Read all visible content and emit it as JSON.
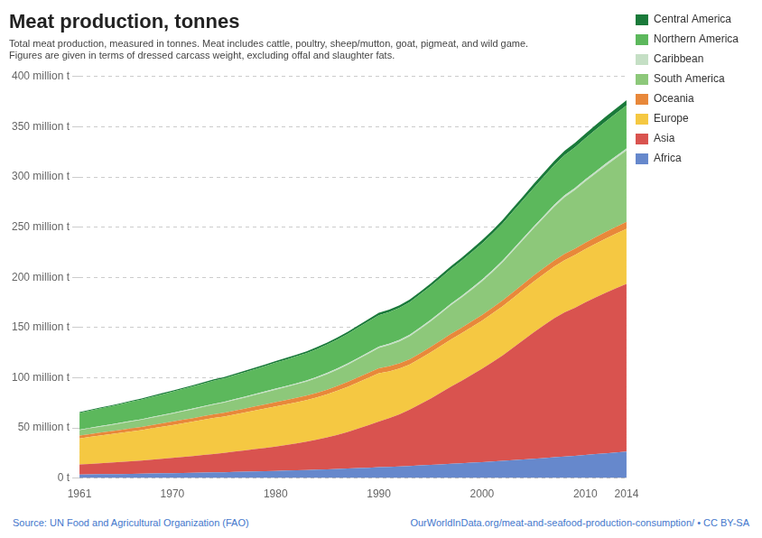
{
  "chart_data": {
    "type": "area",
    "title": "Meat production, tonnes",
    "subtitle": [
      "Total meat production, measured in tonnes. Meat includes cattle, poultry, sheep/mutton, goat, pigmeat, and wild game.",
      "Figures are given in terms of dressed carcass weight, excluding offal and slaughter fats."
    ],
    "annotations": [
      "Source: UN Food and Agricultural Organization (FAO)",
      "OurWorldInData.org/meat-and-seafood-production-consumption/ • CC BY-SA"
    ],
    "x": [
      1961,
      1962,
      1963,
      1964,
      1965,
      1966,
      1967,
      1968,
      1969,
      1970,
      1971,
      1972,
      1973,
      1974,
      1975,
      1976,
      1977,
      1978,
      1979,
      1980,
      1981,
      1982,
      1983,
      1984,
      1985,
      1986,
      1987,
      1988,
      1989,
      1990,
      1991,
      1992,
      1993,
      1994,
      1995,
      1996,
      1997,
      1998,
      1999,
      2000,
      2001,
      2002,
      2003,
      2004,
      2005,
      2006,
      2007,
      2008,
      2009,
      2010,
      2011,
      2012,
      2013,
      2014
    ],
    "series": [
      {
        "name": "Africa",
        "color": "#6688cc",
        "values": [
          3.5,
          3.6,
          3.8,
          3.9,
          4.0,
          4.2,
          4.3,
          4.5,
          4.7,
          4.8,
          5.0,
          5.2,
          5.4,
          5.6,
          5.8,
          6.1,
          6.3,
          6.6,
          6.9,
          7.1,
          7.4,
          7.7,
          8.0,
          8.3,
          8.7,
          9.1,
          9.5,
          9.9,
          10.3,
          10.8,
          11.2,
          11.6,
          12.1,
          12.6,
          13.1,
          13.6,
          14.2,
          14.7,
          15.3,
          15.9,
          16.5,
          17.2,
          17.8,
          18.5,
          19.2,
          19.9,
          20.7,
          21.5,
          22.2,
          23.0,
          23.9,
          24.7,
          25.6,
          26.4
        ]
      },
      {
        "name": "Asia",
        "color": "#d9534f",
        "values": [
          10.0,
          10.5,
          11.0,
          11.5,
          12.0,
          12.5,
          13.0,
          13.8,
          14.5,
          15.2,
          16.0,
          16.8,
          17.6,
          18.4,
          19.2,
          20.2,
          21.2,
          22.2,
          23.2,
          24.3,
          25.5,
          26.8,
          28.2,
          30.0,
          31.8,
          34.0,
          36.5,
          39.5,
          42.5,
          45.5,
          48.5,
          52.0,
          56.0,
          61.0,
          66.0,
          71.5,
          77.0,
          82.0,
          87.5,
          93.0,
          99.0,
          105.0,
          112.0,
          119.0,
          126.0,
          132.5,
          138.5,
          143.5,
          147.5,
          152.0,
          156.0,
          160.0,
          163.5,
          167.0
        ]
      },
      {
        "name": "Europe",
        "color": "#f5c842",
        "values": [
          26.0,
          26.8,
          27.5,
          28.2,
          29.0,
          29.8,
          30.5,
          31.3,
          32.0,
          32.8,
          33.5,
          34.2,
          35.0,
          35.8,
          36.3,
          37.0,
          37.8,
          38.5,
          39.2,
          40.0,
          40.5,
          41.0,
          41.5,
          42.0,
          43.0,
          44.0,
          45.0,
          46.0,
          47.0,
          48.0,
          46.5,
          45.5,
          45.0,
          45.5,
          46.0,
          46.5,
          47.0,
          47.5,
          47.8,
          48.0,
          48.5,
          49.0,
          49.5,
          50.0,
          50.5,
          51.0,
          51.5,
          52.0,
          52.5,
          53.0,
          53.5,
          54.0,
          54.5,
          55.0
        ]
      },
      {
        "name": "Oceania",
        "color": "#e8883a",
        "values": [
          2.8,
          2.9,
          2.9,
          3.0,
          3.0,
          3.1,
          3.1,
          3.2,
          3.3,
          3.4,
          3.5,
          3.5,
          3.6,
          3.7,
          3.8,
          3.8,
          3.9,
          4.0,
          4.1,
          4.2,
          4.2,
          4.3,
          4.4,
          4.5,
          4.6,
          4.7,
          4.8,
          4.9,
          5.0,
          5.0,
          5.1,
          5.1,
          5.2,
          5.2,
          5.3,
          5.4,
          5.5,
          5.5,
          5.6,
          5.6,
          5.7,
          5.8,
          5.9,
          5.9,
          6.0,
          6.1,
          6.2,
          6.3,
          6.3,
          6.4,
          6.5,
          6.6,
          6.7,
          6.8
        ]
      },
      {
        "name": "South America",
        "color": "#8dc87a",
        "values": [
          5.5,
          5.7,
          6.0,
          6.2,
          6.5,
          6.8,
          7.1,
          7.4,
          7.7,
          8.0,
          8.4,
          8.8,
          9.2,
          9.6,
          10.0,
          10.5,
          11.0,
          11.5,
          12.0,
          12.5,
          13.0,
          13.5,
          14.0,
          14.8,
          15.5,
          16.3,
          17.2,
          18.2,
          19.2,
          20.3,
          21.2,
          22.0,
          23.0,
          24.2,
          25.5,
          27.0,
          28.5,
          30.0,
          31.5,
          33.5,
          35.5,
          38.0,
          41.0,
          44.0,
          47.0,
          50.0,
          53.5,
          56.5,
          58.5,
          61.0,
          63.5,
          66.0,
          68.5,
          71.0
        ]
      },
      {
        "name": "Caribbean",
        "color": "#c5dfc5",
        "values": [
          0.5,
          0.52,
          0.54,
          0.56,
          0.58,
          0.6,
          0.62,
          0.65,
          0.67,
          0.7,
          0.73,
          0.76,
          0.79,
          0.82,
          0.85,
          0.88,
          0.91,
          0.94,
          0.97,
          1.0,
          1.03,
          1.06,
          1.1,
          1.14,
          1.18,
          1.22,
          1.26,
          1.3,
          1.34,
          1.38,
          1.41,
          1.44,
          1.47,
          1.5,
          1.54,
          1.57,
          1.6,
          1.64,
          1.67,
          1.7,
          1.74,
          1.77,
          1.8,
          1.84,
          1.87,
          1.9,
          1.94,
          1.97,
          2.0,
          2.04,
          2.07,
          2.1,
          2.14,
          2.17
        ]
      },
      {
        "name": "Northern America",
        "color": "#5cb85c",
        "values": [
          16.5,
          17.0,
          17.5,
          18.0,
          18.5,
          19.0,
          19.5,
          20.0,
          20.5,
          21.0,
          21.5,
          22.0,
          22.5,
          23.0,
          23.2,
          23.8,
          24.3,
          24.8,
          25.3,
          25.8,
          26.3,
          26.8,
          27.3,
          27.8,
          28.3,
          28.8,
          29.5,
          30.2,
          30.8,
          31.3,
          31.5,
          32.0,
          32.5,
          33.0,
          33.5,
          34.0,
          34.5,
          35.0,
          35.5,
          36.0,
          36.5,
          37.0,
          37.5,
          38.0,
          38.5,
          39.0,
          39.5,
          40.0,
          40.5,
          41.0,
          41.5,
          42.0,
          42.5,
          43.0
        ]
      },
      {
        "name": "Central America",
        "color": "#1a7a3a",
        "values": [
          0.9,
          0.92,
          0.95,
          0.98,
          1.01,
          1.05,
          1.08,
          1.12,
          1.15,
          1.19,
          1.23,
          1.27,
          1.31,
          1.35,
          1.39,
          1.44,
          1.49,
          1.54,
          1.59,
          1.64,
          1.7,
          1.75,
          1.81,
          1.87,
          1.93,
          2.0,
          2.07,
          2.14,
          2.22,
          2.3,
          2.38,
          2.47,
          2.56,
          2.65,
          2.75,
          2.85,
          2.95,
          3.05,
          3.16,
          3.27,
          3.38,
          3.5,
          3.62,
          3.75,
          3.88,
          4.01,
          4.14,
          4.28,
          4.42,
          4.56,
          4.7,
          4.85,
          5.0,
          5.15
        ]
      }
    ],
    "stacked": true,
    "xlim": [
      1961,
      2014
    ],
    "xticks": [
      1961,
      1970,
      1980,
      1990,
      2000,
      2010,
      2014
    ],
    "ylim": [
      0,
      400
    ],
    "yticks": [
      {
        "value": 0,
        "label": "0 t"
      },
      {
        "value": 50,
        "label": "50 million t"
      },
      {
        "value": 100,
        "label": "100 million t"
      },
      {
        "value": 150,
        "label": "150 million t"
      },
      {
        "value": 200,
        "label": "200 million t"
      },
      {
        "value": 250,
        "label": "250 million t"
      },
      {
        "value": 300,
        "label": "300 million t"
      },
      {
        "value": 350,
        "label": "350 million t"
      },
      {
        "value": 400,
        "label": "400 million t"
      }
    ],
    "grid": "y",
    "legend": "right"
  }
}
